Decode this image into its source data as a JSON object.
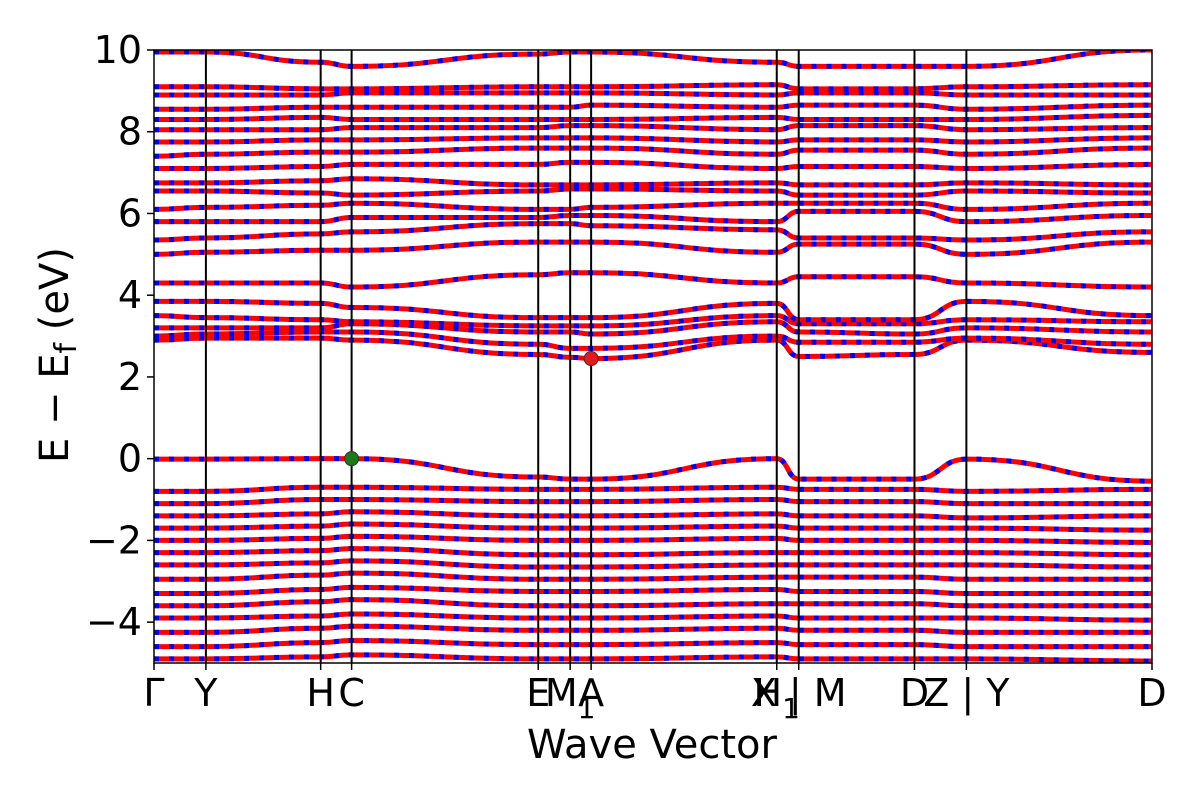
{
  "chart_data": {
    "type": "line",
    "xlabel": "Wave Vector",
    "ylabel": "E − E_f (eV)",
    "ylim": [
      -5,
      10
    ],
    "yticks": [
      -4,
      -2,
      0,
      2,
      4,
      6,
      8,
      10
    ],
    "ytick_labels": [
      "−4",
      "−2",
      "0",
      "2",
      "4",
      "6",
      "8",
      "10"
    ],
    "xlim": [
      0,
      1
    ],
    "kpoints": [
      {
        "label": "Γ",
        "pos": 0.0
      },
      {
        "label": "Y",
        "pos": 0.052
      },
      {
        "label": "H",
        "pos": 0.167
      },
      {
        "label": "C",
        "pos": 0.198
      },
      {
        "label": "E",
        "pos": 0.385
      },
      {
        "label": "M",
        "sub": "1",
        "pos": 0.417
      },
      {
        "label": "A",
        "pos": 0.438
      },
      {
        "label": "H",
        "sub": "1",
        "pos": 0.624
      },
      {
        "label": "X | M",
        "pos": 0.646
      },
      {
        "label": "D",
        "pos": 0.762
      },
      {
        "label": "Z | Y",
        "pos": 0.814
      },
      {
        "label": "D",
        "pos": 1.0
      }
    ],
    "markers": [
      {
        "name": "valence-band-maximum",
        "x": 0.198,
        "y": 0.0,
        "color": "#1a7a1a"
      },
      {
        "name": "conduction-band-minimum",
        "x": 0.438,
        "y": 2.45,
        "color": "#e8191b"
      }
    ],
    "colors": {
      "band_primary": "#ff0000",
      "band_secondary": "#0000ff",
      "kpath_line": "#000000"
    },
    "series": [
      {
        "y": [
          -0.01,
          -0.01,
          0.0,
          0.0,
          -0.45,
          -0.5,
          -0.5,
          0.0,
          -0.5,
          -0.5,
          -0.01,
          -0.55
        ]
      },
      {
        "y": [
          2.9,
          2.95,
          2.95,
          2.9,
          2.55,
          2.48,
          2.45,
          2.9,
          2.5,
          2.55,
          2.9,
          2.6
        ]
      },
      {
        "y": [
          3.0,
          3.05,
          3.1,
          3.1,
          2.8,
          2.7,
          2.7,
          3.0,
          2.85,
          2.85,
          2.95,
          2.8
        ]
      },
      {
        "y": [
          3.2,
          3.2,
          3.2,
          3.3,
          3.1,
          3.1,
          3.05,
          3.35,
          3.1,
          3.05,
          3.2,
          3.1
        ]
      },
      {
        "y": [
          3.5,
          3.45,
          3.4,
          3.35,
          3.25,
          3.25,
          3.25,
          3.5,
          3.3,
          3.3,
          3.4,
          3.35
        ]
      },
      {
        "y": [
          3.85,
          3.85,
          3.8,
          3.7,
          3.45,
          3.45,
          3.45,
          3.8,
          3.4,
          3.4,
          3.85,
          3.5
        ]
      },
      {
        "y": [
          4.3,
          4.3,
          4.3,
          4.2,
          4.5,
          4.55,
          4.55,
          4.3,
          4.45,
          4.45,
          4.3,
          4.2
        ]
      },
      {
        "y": [
          5.0,
          5.05,
          5.1,
          5.1,
          5.3,
          5.3,
          5.3,
          5.05,
          5.25,
          5.25,
          5.0,
          5.3
        ]
      },
      {
        "y": [
          5.35,
          5.4,
          5.5,
          5.55,
          5.75,
          5.75,
          5.7,
          5.6,
          5.4,
          5.4,
          5.35,
          5.55
        ]
      },
      {
        "y": [
          5.8,
          5.8,
          5.8,
          5.9,
          5.9,
          5.95,
          5.95,
          5.8,
          6.05,
          6.05,
          5.8,
          5.95
        ]
      },
      {
        "y": [
          6.1,
          6.15,
          6.2,
          6.25,
          6.1,
          6.1,
          6.15,
          6.25,
          6.25,
          6.25,
          6.1,
          6.25
        ]
      },
      {
        "y": [
          6.55,
          6.55,
          6.5,
          6.45,
          6.55,
          6.6,
          6.6,
          6.55,
          6.45,
          6.45,
          6.55,
          6.5
        ]
      },
      {
        "y": [
          6.75,
          6.75,
          6.8,
          6.85,
          6.7,
          6.7,
          6.7,
          6.75,
          6.7,
          6.7,
          6.75,
          6.7
        ]
      },
      {
        "y": [
          7.1,
          7.1,
          7.15,
          7.2,
          7.2,
          7.25,
          7.25,
          7.1,
          7.15,
          7.15,
          7.1,
          7.2
        ]
      },
      {
        "y": [
          7.4,
          7.45,
          7.5,
          7.5,
          7.6,
          7.6,
          7.6,
          7.45,
          7.55,
          7.55,
          7.45,
          7.6
        ]
      },
      {
        "y": [
          7.75,
          7.75,
          7.8,
          7.8,
          7.85,
          7.85,
          7.85,
          7.75,
          7.8,
          7.8,
          7.75,
          7.85
        ]
      },
      {
        "y": [
          8.05,
          8.05,
          8.05,
          8.1,
          8.1,
          8.15,
          8.15,
          8.05,
          8.15,
          8.15,
          8.05,
          8.1
        ]
      },
      {
        "y": [
          8.3,
          8.3,
          8.35,
          8.3,
          8.3,
          8.3,
          8.3,
          8.35,
          8.3,
          8.3,
          8.3,
          8.4
        ]
      },
      {
        "y": [
          8.55,
          8.55,
          8.6,
          8.6,
          8.6,
          8.6,
          8.65,
          8.6,
          8.65,
          8.65,
          8.55,
          8.65
        ]
      },
      {
        "y": [
          8.9,
          8.9,
          8.9,
          8.95,
          8.95,
          8.95,
          8.95,
          8.9,
          8.95,
          8.95,
          8.9,
          8.9
        ]
      },
      {
        "y": [
          9.1,
          9.1,
          9.05,
          9.05,
          9.1,
          9.1,
          9.1,
          9.15,
          9.05,
          9.05,
          9.1,
          9.15
        ]
      },
      {
        "y": [
          9.95,
          9.95,
          9.7,
          9.6,
          9.9,
          9.95,
          9.95,
          9.7,
          9.6,
          9.6,
          9.6,
          10.0
        ]
      },
      {
        "y": [
          -0.8,
          -0.8,
          -0.7,
          -0.7,
          -0.75,
          -0.75,
          -0.75,
          -0.7,
          -0.75,
          -0.75,
          -0.8,
          -0.75
        ]
      },
      {
        "y": [
          -1.1,
          -1.1,
          -1.0,
          -1.0,
          -1.05,
          -1.05,
          -1.05,
          -1.0,
          -1.05,
          -1.05,
          -1.1,
          -1.1
        ]
      },
      {
        "y": [
          -1.4,
          -1.4,
          -1.35,
          -1.3,
          -1.4,
          -1.4,
          -1.4,
          -1.35,
          -1.4,
          -1.4,
          -1.45,
          -1.4
        ]
      },
      {
        "y": [
          -1.7,
          -1.7,
          -1.65,
          -1.6,
          -1.7,
          -1.7,
          -1.7,
          -1.65,
          -1.7,
          -1.7,
          -1.7,
          -1.75
        ]
      },
      {
        "y": [
          -2.0,
          -2.0,
          -1.95,
          -1.9,
          -2.0,
          -2.0,
          -2.0,
          -1.95,
          -2.0,
          -2.0,
          -2.0,
          -2.05
        ]
      },
      {
        "y": [
          -2.3,
          -2.3,
          -2.25,
          -2.2,
          -2.35,
          -2.35,
          -2.35,
          -2.3,
          -2.3,
          -2.3,
          -2.3,
          -2.35
        ]
      },
      {
        "y": [
          -2.6,
          -2.6,
          -2.55,
          -2.5,
          -2.65,
          -2.65,
          -2.65,
          -2.6,
          -2.6,
          -2.6,
          -2.6,
          -2.65
        ]
      },
      {
        "y": [
          -2.95,
          -2.95,
          -2.85,
          -2.8,
          -2.95,
          -2.95,
          -2.95,
          -2.9,
          -2.9,
          -2.9,
          -2.95,
          -2.95
        ]
      },
      {
        "y": [
          -3.3,
          -3.3,
          -3.2,
          -3.15,
          -3.25,
          -3.25,
          -3.25,
          -3.2,
          -3.25,
          -3.25,
          -3.3,
          -3.3
        ]
      },
      {
        "y": [
          -3.6,
          -3.6,
          -3.5,
          -3.45,
          -3.6,
          -3.6,
          -3.6,
          -3.55,
          -3.55,
          -3.55,
          -3.6,
          -3.6
        ]
      },
      {
        "y": [
          -3.9,
          -3.9,
          -3.85,
          -3.8,
          -3.9,
          -3.9,
          -3.9,
          -3.85,
          -3.9,
          -3.9,
          -3.9,
          -3.95
        ]
      },
      {
        "y": [
          -4.25,
          -4.25,
          -4.15,
          -4.1,
          -4.2,
          -4.2,
          -4.2,
          -4.15,
          -4.2,
          -4.2,
          -4.25,
          -4.25
        ]
      },
      {
        "y": [
          -4.6,
          -4.6,
          -4.5,
          -4.45,
          -4.55,
          -4.55,
          -4.55,
          -4.5,
          -4.55,
          -4.55,
          -4.6,
          -4.6
        ]
      },
      {
        "y": [
          -4.9,
          -4.9,
          -4.85,
          -4.8,
          -4.9,
          -4.9,
          -4.9,
          -4.85,
          -4.9,
          -4.9,
          -4.9,
          -4.95
        ]
      }
    ]
  }
}
